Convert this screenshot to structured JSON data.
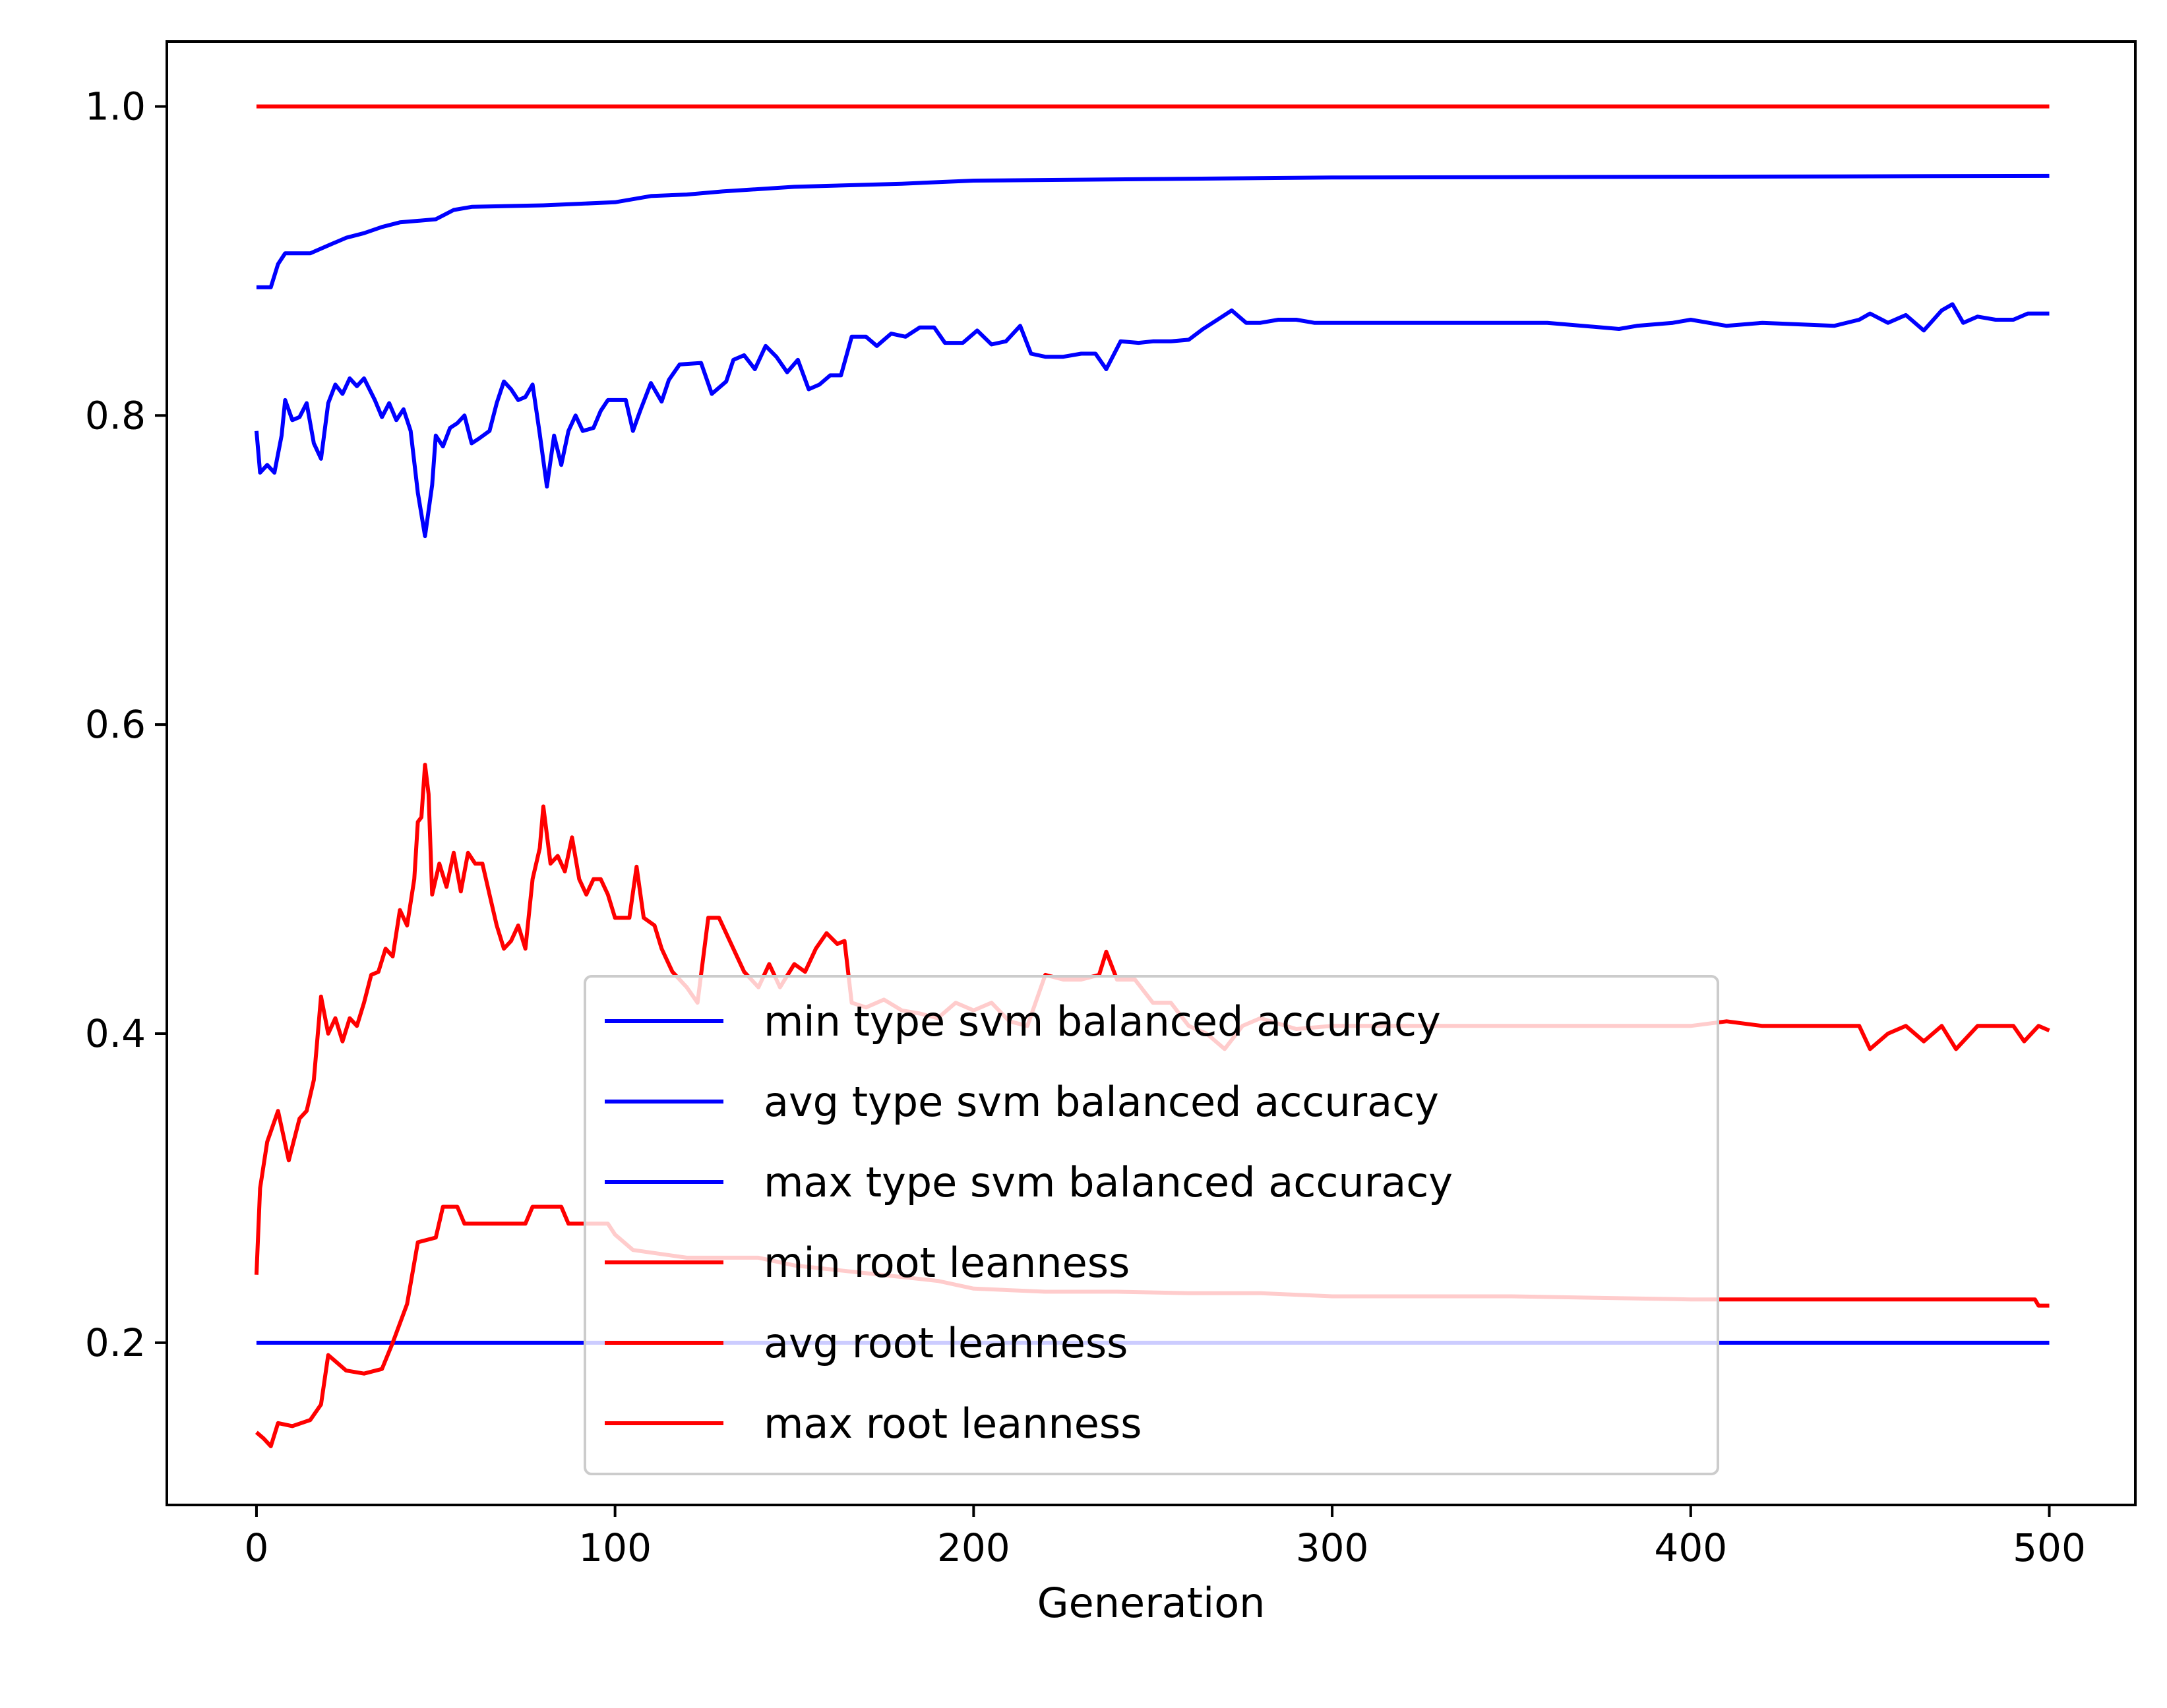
{
  "chart_data": {
    "type": "line",
    "title": "",
    "xlabel": "Generation",
    "ylabel": "",
    "xlim": [
      -25,
      524
    ],
    "ylim": [
      0.095,
      1.042
    ],
    "xticks": [
      0,
      100,
      200,
      300,
      400,
      500
    ],
    "yticks": [
      0.2,
      0.4,
      0.6,
      0.8,
      1.0
    ],
    "grid": false,
    "legend_position": "lower center",
    "series": [
      {
        "name": "min type svm balanced accuracy",
        "color": "#0000ff",
        "points": [
          [
            0,
            0.2
          ],
          [
            500,
            0.2
          ]
        ]
      },
      {
        "name": "avg type svm balanced accuracy",
        "color": "#0000ff",
        "points": [
          [
            0,
            0.79
          ],
          [
            1,
            0.763
          ],
          [
            3,
            0.768
          ],
          [
            5,
            0.763
          ],
          [
            7,
            0.787
          ],
          [
            8,
            0.81
          ],
          [
            10,
            0.797
          ],
          [
            12,
            0.799
          ],
          [
            14,
            0.808
          ],
          [
            16,
            0.782
          ],
          [
            18,
            0.772
          ],
          [
            20,
            0.808
          ],
          [
            22,
            0.82
          ],
          [
            24,
            0.814
          ],
          [
            26,
            0.824
          ],
          [
            28,
            0.819
          ],
          [
            30,
            0.824
          ],
          [
            33,
            0.81
          ],
          [
            35,
            0.799
          ],
          [
            37,
            0.808
          ],
          [
            39,
            0.797
          ],
          [
            41,
            0.804
          ],
          [
            43,
            0.79
          ],
          [
            45,
            0.75
          ],
          [
            47,
            0.722
          ],
          [
            49,
            0.755
          ],
          [
            50,
            0.787
          ],
          [
            52,
            0.78
          ],
          [
            54,
            0.792
          ],
          [
            56,
            0.795
          ],
          [
            58,
            0.8
          ],
          [
            60,
            0.782
          ],
          [
            62,
            0.785
          ],
          [
            65,
            0.79
          ],
          [
            67,
            0.808
          ],
          [
            69,
            0.822
          ],
          [
            71,
            0.817
          ],
          [
            73,
            0.81
          ],
          [
            75,
            0.812
          ],
          [
            77,
            0.82
          ],
          [
            79,
            0.788
          ],
          [
            81,
            0.754
          ],
          [
            83,
            0.787
          ],
          [
            85,
            0.768
          ],
          [
            87,
            0.79
          ],
          [
            89,
            0.8
          ],
          [
            91,
            0.79
          ],
          [
            94,
            0.792
          ],
          [
            96,
            0.803
          ],
          [
            98,
            0.81
          ],
          [
            103,
            0.81
          ],
          [
            105,
            0.79
          ],
          [
            107,
            0.803
          ],
          [
            110,
            0.821
          ],
          [
            113,
            0.809
          ],
          [
            115,
            0.823
          ],
          [
            118,
            0.833
          ],
          [
            124,
            0.834
          ],
          [
            127,
            0.814
          ],
          [
            131,
            0.822
          ],
          [
            133,
            0.836
          ],
          [
            136,
            0.839
          ],
          [
            139,
            0.83
          ],
          [
            142,
            0.845
          ],
          [
            145,
            0.838
          ],
          [
            148,
            0.828
          ],
          [
            151,
            0.836
          ],
          [
            154,
            0.817
          ],
          [
            157,
            0.82
          ],
          [
            160,
            0.826
          ],
          [
            163,
            0.826
          ],
          [
            166,
            0.851
          ],
          [
            170,
            0.851
          ],
          [
            173,
            0.845
          ],
          [
            177,
            0.853
          ],
          [
            181,
            0.851
          ],
          [
            185,
            0.857
          ],
          [
            189,
            0.857
          ],
          [
            192,
            0.847
          ],
          [
            197,
            0.847
          ],
          [
            201,
            0.855
          ],
          [
            205,
            0.846
          ],
          [
            209,
            0.848
          ],
          [
            213,
            0.858
          ],
          [
            216,
            0.84
          ],
          [
            220,
            0.838
          ],
          [
            225,
            0.838
          ],
          [
            230,
            0.84
          ],
          [
            234,
            0.84
          ],
          [
            237,
            0.83
          ],
          [
            241,
            0.848
          ],
          [
            246,
            0.847
          ],
          [
            250,
            0.848
          ],
          [
            255,
            0.848
          ],
          [
            260,
            0.849
          ],
          [
            264,
            0.856
          ],
          [
            268,
            0.862
          ],
          [
            272,
            0.868
          ],
          [
            276,
            0.86
          ],
          [
            280,
            0.86
          ],
          [
            285,
            0.862
          ],
          [
            290,
            0.862
          ],
          [
            295,
            0.86
          ],
          [
            300,
            0.86
          ],
          [
            320,
            0.86
          ],
          [
            340,
            0.86
          ],
          [
            360,
            0.86
          ],
          [
            380,
            0.856
          ],
          [
            385,
            0.858
          ],
          [
            395,
            0.86
          ],
          [
            400,
            0.862
          ],
          [
            410,
            0.858
          ],
          [
            420,
            0.86
          ],
          [
            440,
            0.858
          ],
          [
            447,
            0.862
          ],
          [
            450,
            0.866
          ],
          [
            455,
            0.86
          ],
          [
            460,
            0.865
          ],
          [
            465,
            0.855
          ],
          [
            470,
            0.868
          ],
          [
            473,
            0.872
          ],
          [
            476,
            0.86
          ],
          [
            480,
            0.864
          ],
          [
            485,
            0.862
          ],
          [
            490,
            0.862
          ],
          [
            494,
            0.866
          ],
          [
            500,
            0.866
          ]
        ]
      },
      {
        "name": "max type svm balanced accuracy",
        "color": "#0000ff",
        "points": [
          [
            0,
            0.883
          ],
          [
            4,
            0.883
          ],
          [
            6,
            0.898
          ],
          [
            8,
            0.905
          ],
          [
            15,
            0.905
          ],
          [
            20,
            0.91
          ],
          [
            25,
            0.915
          ],
          [
            30,
            0.918
          ],
          [
            35,
            0.922
          ],
          [
            40,
            0.925
          ],
          [
            50,
            0.927
          ],
          [
            55,
            0.933
          ],
          [
            60,
            0.935
          ],
          [
            80,
            0.936
          ],
          [
            100,
            0.938
          ],
          [
            110,
            0.942
          ],
          [
            120,
            0.943
          ],
          [
            130,
            0.945
          ],
          [
            150,
            0.948
          ],
          [
            180,
            0.95
          ],
          [
            200,
            0.952
          ],
          [
            250,
            0.953
          ],
          [
            300,
            0.954
          ],
          [
            500,
            0.955
          ]
        ]
      },
      {
        "name": "min root leanness",
        "color": "#ff0000",
        "points": [
          [
            0,
            0.142
          ],
          [
            2,
            0.138
          ],
          [
            4,
            0.133
          ],
          [
            6,
            0.148
          ],
          [
            10,
            0.146
          ],
          [
            15,
            0.15
          ],
          [
            18,
            0.16
          ],
          [
            20,
            0.192
          ],
          [
            25,
            0.182
          ],
          [
            30,
            0.18
          ],
          [
            35,
            0.183
          ],
          [
            38,
            0.2
          ],
          [
            42,
            0.225
          ],
          [
            45,
            0.265
          ],
          [
            50,
            0.268
          ],
          [
            52,
            0.288
          ],
          [
            56,
            0.288
          ],
          [
            58,
            0.277
          ],
          [
            75,
            0.277
          ],
          [
            77,
            0.288
          ],
          [
            85,
            0.288
          ],
          [
            87,
            0.277
          ],
          [
            98,
            0.277
          ],
          [
            100,
            0.27
          ],
          [
            105,
            0.26
          ],
          [
            120,
            0.255
          ],
          [
            140,
            0.255
          ],
          [
            150,
            0.25
          ],
          [
            170,
            0.245
          ],
          [
            190,
            0.24
          ],
          [
            200,
            0.235
          ],
          [
            220,
            0.233
          ],
          [
            240,
            0.233
          ],
          [
            260,
            0.232
          ],
          [
            280,
            0.232
          ],
          [
            300,
            0.23
          ],
          [
            350,
            0.23
          ],
          [
            400,
            0.228
          ],
          [
            496,
            0.228
          ],
          [
            497,
            0.224
          ],
          [
            500,
            0.224
          ]
        ]
      },
      {
        "name": "avg root leanness",
        "color": "#ff0000",
        "points": [
          [
            0,
            0.244
          ],
          [
            1,
            0.3
          ],
          [
            3,
            0.33
          ],
          [
            6,
            0.35
          ],
          [
            9,
            0.318
          ],
          [
            12,
            0.345
          ],
          [
            14,
            0.35
          ],
          [
            16,
            0.37
          ],
          [
            18,
            0.424
          ],
          [
            20,
            0.4
          ],
          [
            22,
            0.41
          ],
          [
            24,
            0.395
          ],
          [
            26,
            0.41
          ],
          [
            28,
            0.405
          ],
          [
            30,
            0.42
          ],
          [
            32,
            0.438
          ],
          [
            34,
            0.44
          ],
          [
            36,
            0.455
          ],
          [
            38,
            0.45
          ],
          [
            40,
            0.48
          ],
          [
            42,
            0.47
          ],
          [
            44,
            0.5
          ],
          [
            45,
            0.537
          ],
          [
            46,
            0.54
          ],
          [
            47,
            0.574
          ],
          [
            48,
            0.555
          ],
          [
            49,
            0.49
          ],
          [
            51,
            0.51
          ],
          [
            53,
            0.495
          ],
          [
            55,
            0.517
          ],
          [
            57,
            0.492
          ],
          [
            59,
            0.517
          ],
          [
            61,
            0.51
          ],
          [
            63,
            0.51
          ],
          [
            65,
            0.49
          ],
          [
            67,
            0.47
          ],
          [
            69,
            0.455
          ],
          [
            71,
            0.46
          ],
          [
            73,
            0.47
          ],
          [
            75,
            0.455
          ],
          [
            77,
            0.5
          ],
          [
            79,
            0.52
          ],
          [
            80,
            0.547
          ],
          [
            82,
            0.51
          ],
          [
            84,
            0.515
          ],
          [
            86,
            0.505
          ],
          [
            88,
            0.527
          ],
          [
            90,
            0.5
          ],
          [
            92,
            0.49
          ],
          [
            94,
            0.5
          ],
          [
            96,
            0.5
          ],
          [
            98,
            0.49
          ],
          [
            100,
            0.475
          ],
          [
            104,
            0.475
          ],
          [
            106,
            0.508
          ],
          [
            108,
            0.475
          ],
          [
            111,
            0.47
          ],
          [
            113,
            0.455
          ],
          [
            116,
            0.44
          ],
          [
            120,
            0.43
          ],
          [
            123,
            0.42
          ],
          [
            126,
            0.475
          ],
          [
            129,
            0.475
          ],
          [
            132,
            0.46
          ],
          [
            134,
            0.45
          ],
          [
            136,
            0.44
          ],
          [
            140,
            0.43
          ],
          [
            143,
            0.445
          ],
          [
            146,
            0.43
          ],
          [
            150,
            0.445
          ],
          [
            153,
            0.44
          ],
          [
            156,
            0.455
          ],
          [
            159,
            0.465
          ],
          [
            162,
            0.458
          ],
          [
            164,
            0.46
          ],
          [
            166,
            0.42
          ],
          [
            170,
            0.417
          ],
          [
            175,
            0.422
          ],
          [
            180,
            0.415
          ],
          [
            185,
            0.413
          ],
          [
            190,
            0.41
          ],
          [
            195,
            0.42
          ],
          [
            200,
            0.415
          ],
          [
            205,
            0.42
          ],
          [
            210,
            0.408
          ],
          [
            215,
            0.405
          ],
          [
            220,
            0.438
          ],
          [
            225,
            0.435
          ],
          [
            230,
            0.435
          ],
          [
            235,
            0.438
          ],
          [
            237,
            0.453
          ],
          [
            240,
            0.435
          ],
          [
            245,
            0.435
          ],
          [
            250,
            0.42
          ],
          [
            255,
            0.42
          ],
          [
            260,
            0.405
          ],
          [
            265,
            0.4
          ],
          [
            270,
            0.39
          ],
          [
            275,
            0.405
          ],
          [
            280,
            0.41
          ],
          [
            290,
            0.403
          ],
          [
            300,
            0.405
          ],
          [
            320,
            0.405
          ],
          [
            340,
            0.405
          ],
          [
            360,
            0.405
          ],
          [
            380,
            0.405
          ],
          [
            400,
            0.405
          ],
          [
            410,
            0.408
          ],
          [
            420,
            0.405
          ],
          [
            440,
            0.405
          ],
          [
            447,
            0.405
          ],
          [
            450,
            0.39
          ],
          [
            455,
            0.4
          ],
          [
            460,
            0.405
          ],
          [
            465,
            0.395
          ],
          [
            470,
            0.405
          ],
          [
            474,
            0.39
          ],
          [
            480,
            0.405
          ],
          [
            490,
            0.405
          ],
          [
            493,
            0.395
          ],
          [
            497,
            0.405
          ],
          [
            500,
            0.402
          ]
        ]
      },
      {
        "name": "max root leanness",
        "color": "#ff0000",
        "points": [
          [
            0,
            1.0
          ],
          [
            500,
            1.0
          ]
        ]
      }
    ]
  }
}
